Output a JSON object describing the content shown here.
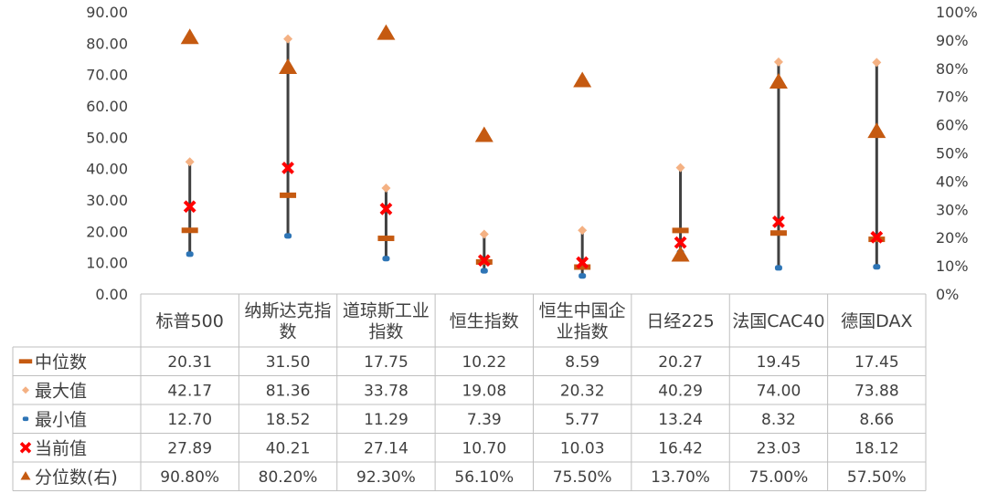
{
  "chart_data": {
    "type": "table",
    "categories": [
      "标普500",
      "纳斯达克指数",
      "道琼斯工业指数",
      "恒生指数",
      "恒生中国企业指数",
      "日经225",
      "法国CAC40",
      "德国DAX"
    ],
    "category_lines": [
      [
        "标普500"
      ],
      [
        "纳斯达克指",
        "数"
      ],
      [
        "道琼斯工业",
        "指数"
      ],
      [
        "恒生指数"
      ],
      [
        "恒生中国企",
        "业指数"
      ],
      [
        "日经225"
      ],
      [
        "法国CAC40"
      ],
      [
        "德国DAX"
      ]
    ],
    "ylim": [
      0,
      90
    ],
    "y_ticks": [
      "0.00",
      "10.00",
      "20.00",
      "30.00",
      "40.00",
      "50.00",
      "60.00",
      "70.00",
      "80.00",
      "90.00"
    ],
    "y2lim": [
      0,
      100
    ],
    "y2_ticks": [
      "0%",
      "10%",
      "20%",
      "30%",
      "40%",
      "50%",
      "60%",
      "70%",
      "80%",
      "90%",
      "100%"
    ],
    "legend": "table-rows",
    "series": [
      {
        "name": "中位数",
        "marker": "dash",
        "color": "#c55a11",
        "values": [
          20.31,
          31.5,
          17.75,
          10.22,
          8.59,
          20.27,
          19.45,
          17.45
        ],
        "labels": [
          "20.31",
          "31.50",
          "17.75",
          "10.22",
          "8.59",
          "20.27",
          "19.45",
          "17.45"
        ]
      },
      {
        "name": "最大值",
        "marker": "diamond",
        "color": "#f4b183",
        "values": [
          42.17,
          81.36,
          33.78,
          19.08,
          20.32,
          40.29,
          74.0,
          73.88
        ],
        "labels": [
          "42.17",
          "81.36",
          "33.78",
          "19.08",
          "20.32",
          "40.29",
          "74.00",
          "73.88"
        ]
      },
      {
        "name": "最小值",
        "marker": "dot",
        "color": "#2e75b6",
        "values": [
          12.7,
          18.52,
          11.29,
          7.39,
          5.77,
          13.24,
          8.32,
          8.66
        ],
        "labels": [
          "12.70",
          "18.52",
          "11.29",
          "7.39",
          "5.77",
          "13.24",
          "8.32",
          "8.66"
        ]
      },
      {
        "name": "当前值",
        "marker": "cross",
        "color": "#ff0000",
        "values": [
          27.89,
          40.21,
          27.14,
          10.7,
          10.03,
          16.42,
          23.03,
          18.12
        ],
        "labels": [
          "27.89",
          "40.21",
          "27.14",
          "10.70",
          "10.03",
          "16.42",
          "23.03",
          "18.12"
        ]
      },
      {
        "name": "分位数(右)",
        "marker": "triangle",
        "color": "#c55a11",
        "axis": "right",
        "values": [
          90.8,
          80.2,
          92.3,
          56.1,
          75.5,
          13.7,
          75.0,
          57.5
        ],
        "labels": [
          "90.80%",
          "80.20%",
          "92.30%",
          "56.10%",
          "75.50%",
          "13.70%",
          "75.00%",
          "57.50%"
        ]
      }
    ],
    "range_line_color": "#404040"
  }
}
